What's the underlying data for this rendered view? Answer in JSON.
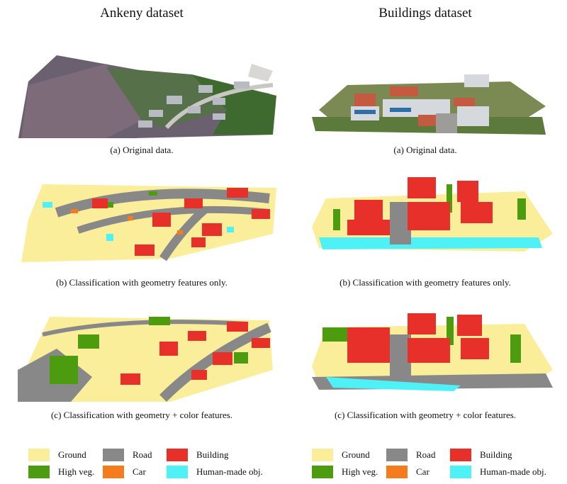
{
  "columns": [
    {
      "title": "Ankeny dataset",
      "captions": [
        "(a) Original data.",
        "(b) Classification with geometry features only.",
        "(c) Classification with geometry + color features."
      ]
    },
    {
      "title": "Buildings dataset",
      "captions": [
        "(a) Original data.",
        "(b) Classification with geometry features only.",
        "(c) Classification with geometry + color features."
      ]
    }
  ],
  "legend": [
    {
      "label": "Ground",
      "color": "#fbee9a"
    },
    {
      "label": "Road",
      "color": "#888888"
    },
    {
      "label": "Building",
      "color": "#e8302a"
    },
    {
      "label": "High veg.",
      "color": "#4d9b0e"
    },
    {
      "label": "Car",
      "color": "#f57c1c"
    },
    {
      "label": "Human-made obj.",
      "color": "#4ef1f6"
    }
  ],
  "colors": {
    "ground": "#fbee9a",
    "road": "#888888",
    "building": "#e8302a",
    "veg": "#4d9b0e",
    "car": "#f57c1c",
    "human": "#4ef1f6",
    "photo_dark": "#5b5561",
    "photo_grass": "#5c7a3c",
    "photo_roof": "#9aa0a6"
  }
}
